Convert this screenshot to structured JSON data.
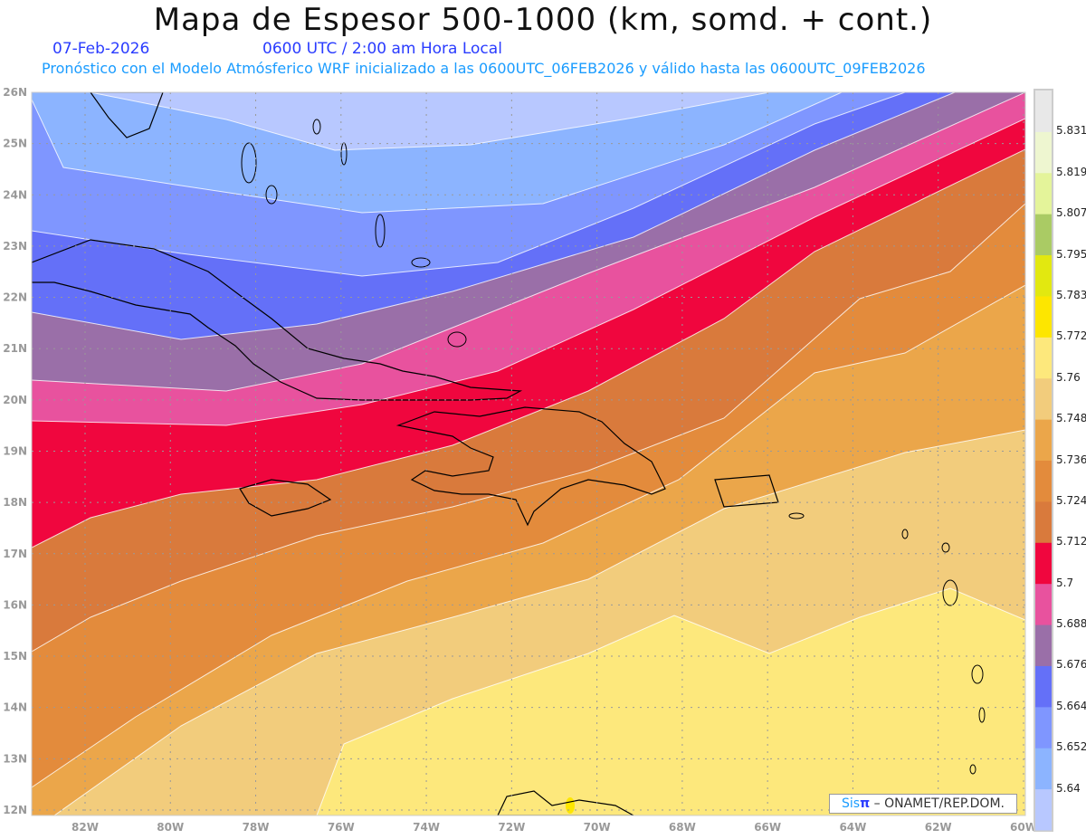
{
  "title": "Mapa de Espesor 500-1000 (km, somd. + cont.)",
  "date": "07-Feb-2026",
  "time": "0600 UTC / 2:00 am Hora Local",
  "forecast_info": "Pronóstico con el Modelo Atmósferico WRF inicializado a las 0600UTC_06FEB2026 y válido hasta las  0600UTC_09FEB2026",
  "logo": {
    "brand_a": "Sis",
    "brand_b": "π",
    "text": "– ONAMET/REP.DOM."
  },
  "axes": {
    "lon_labels": [
      "82W",
      "80W",
      "78W",
      "76W",
      "74W",
      "72W",
      "70W",
      "68W",
      "66W",
      "64W",
      "62W",
      "60W"
    ],
    "lat_labels": [
      "26N",
      "25N",
      "24N",
      "23N",
      "22N",
      "21N",
      "20N",
      "19N",
      "18N",
      "17N",
      "16N",
      "15N",
      "14N",
      "13N",
      "12N"
    ]
  },
  "colorbar": {
    "labels": [
      "5.64",
      "5.652",
      "5.664",
      "5.676",
      "5.688",
      "5.7",
      "5.712",
      "5.724",
      "5.736",
      "5.748",
      "5.76",
      "5.772",
      "5.783",
      "5.795",
      "5.807",
      "5.819",
      "5.831"
    ],
    "colors": [
      "#b8c8ff",
      "#8cb4ff",
      "#7f96ff",
      "#6470f8",
      "#9a6fa8",
      "#e8529e",
      "#f0063e",
      "#d97a3c",
      "#e38b3c",
      "#eba64a",
      "#f2cc7c",
      "#fde87c",
      "#fde600",
      "#e2e810",
      "#aacb64",
      "#e4f49a",
      "#eef6d0",
      "#e8e8e8"
    ]
  }
}
